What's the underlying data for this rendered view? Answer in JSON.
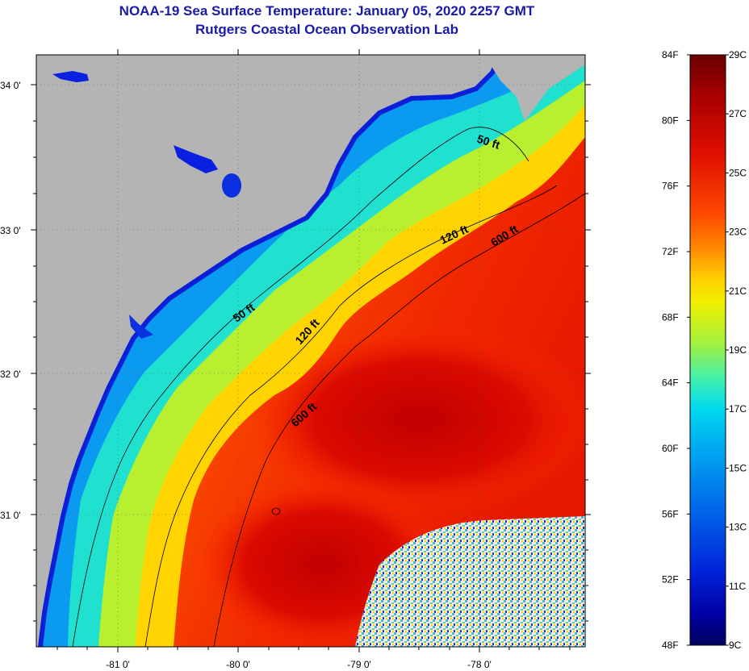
{
  "title": {
    "line1": "NOAA-19 Sea Surface Temperature:  January 05, 2020 2257 GMT",
    "line2": "Rutgers Coastal Ocean Observation Lab"
  },
  "map": {
    "lat_labels": [
      "34 0'",
      "33 0'",
      "32 0'",
      "31 0'"
    ],
    "lon_labels": [
      "-81 0'",
      "-80 0'",
      "-79 0'",
      "-78 0'"
    ],
    "contour_labels": [
      "50 ft",
      "50 ft",
      "120 ft",
      "120 ft",
      "600 ft",
      "600 ft"
    ],
    "land_color": "#b4b4b4",
    "contour_color": "#000000"
  },
  "colorbar": {
    "fahrenheit_labels": [
      "84F",
      "80F",
      "76F",
      "72F",
      "68F",
      "64F",
      "60F",
      "56F",
      "52F",
      "48F"
    ],
    "celsius_labels": [
      "29C",
      "27C",
      "25C",
      "23C",
      "21C",
      "19C",
      "17C",
      "15C",
      "13C",
      "11C",
      "9C"
    ],
    "scale_colors": [
      "#6a0000",
      "#a80000",
      "#e01000",
      "#ff4a00",
      "#ff8c00",
      "#ffd000",
      "#f0f000",
      "#a0f040",
      "#40f0b0",
      "#00d8f0",
      "#00a0f0",
      "#0060e8",
      "#0020d8",
      "#0000a0",
      "#000060"
    ]
  }
}
